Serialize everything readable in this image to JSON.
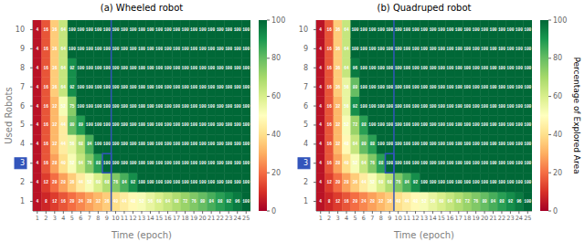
{
  "chart_data": [
    {
      "type": "heatmap",
      "title": "(a) Wheeled robot",
      "x_label": "Time (epoch)",
      "y_label": "Used Robots",
      "x": [
        1,
        2,
        3,
        4,
        5,
        6,
        7,
        8,
        9,
        10,
        11,
        12,
        13,
        14,
        15,
        16,
        17,
        18,
        19,
        20,
        21,
        22,
        23,
        24,
        25
      ],
      "y": [
        1,
        2,
        3,
        4,
        5,
        6,
        7,
        8,
        9,
        10
      ],
      "xlim": [
        0.5,
        25.5
      ],
      "xticks": [
        1,
        2,
        3,
        4,
        5,
        6,
        7,
        8,
        9,
        10,
        11,
        12,
        13,
        14,
        15,
        16,
        17,
        18,
        19,
        20,
        21,
        22,
        23,
        24,
        25
      ],
      "ylim": [
        0.5,
        10.5
      ],
      "yticks": [
        1,
        2,
        3,
        4,
        5,
        6,
        7,
        8,
        9,
        10
      ],
      "values": [
        [
          4,
          8,
          12,
          16,
          20,
          24,
          28,
          32,
          36,
          40,
          44,
          48,
          52,
          56,
          60,
          64,
          68,
          72,
          76,
          80,
          84,
          88,
          92,
          96,
          100
        ],
        [
          4,
          12,
          20,
          28,
          36,
          44,
          52,
          60,
          68,
          76,
          84,
          92,
          100,
          100,
          100,
          100,
          100,
          100,
          100,
          100,
          100,
          100,
          100,
          100,
          100
        ],
        [
          4,
          16,
          28,
          40,
          52,
          64,
          76,
          88,
          100,
          100,
          100,
          100,
          100,
          100,
          100,
          100,
          100,
          100,
          100,
          100,
          100,
          100,
          100,
          100,
          100
        ],
        [
          4,
          16,
          32,
          44,
          56,
          68,
          84,
          100,
          100,
          100,
          100,
          100,
          100,
          100,
          100,
          100,
          100,
          100,
          100,
          100,
          100,
          100,
          100,
          100,
          100
        ],
        [
          4,
          16,
          32,
          44,
          80,
          89,
          100,
          100,
          100,
          100,
          100,
          100,
          100,
          100,
          100,
          100,
          100,
          100,
          100,
          100,
          100,
          100,
          100,
          100,
          100
        ],
        [
          4,
          16,
          32,
          52,
          75,
          100,
          100,
          100,
          100,
          100,
          100,
          100,
          100,
          100,
          100,
          100,
          100,
          100,
          100,
          100,
          100,
          100,
          100,
          100,
          100
        ],
        [
          4,
          16,
          36,
          64,
          92,
          100,
          100,
          100,
          100,
          100,
          100,
          100,
          100,
          100,
          100,
          100,
          100,
          100,
          100,
          100,
          100,
          100,
          100,
          100,
          100
        ],
        [
          4,
          16,
          36,
          64,
          92,
          100,
          100,
          100,
          100,
          100,
          100,
          100,
          100,
          100,
          100,
          100,
          100,
          100,
          100,
          100,
          100,
          100,
          100,
          100,
          100
        ],
        [
          4,
          16,
          36,
          64,
          100,
          100,
          100,
          100,
          100,
          100,
          100,
          100,
          100,
          100,
          100,
          100,
          100,
          100,
          100,
          100,
          100,
          100,
          100,
          100,
          100
        ],
        [
          4,
          16,
          36,
          64,
          100,
          100,
          100,
          100,
          100,
          100,
          100,
          100,
          100,
          100,
          100,
          100,
          100,
          100,
          100,
          100,
          100,
          100,
          100,
          100,
          100
        ]
      ],
      "data_labels": true,
      "colorbar": {
        "range": [
          0,
          100
        ],
        "ticks": [
          0,
          20,
          40,
          60,
          80,
          100
        ]
      },
      "highlight": {
        "color": "#3355bb",
        "line_x": 9.5,
        "box_x": [
          8.5,
          9.5
        ],
        "box_y": [
          2.5,
          3.5
        ],
        "tick": 3
      }
    },
    {
      "type": "heatmap",
      "title": "(b) Quadruped robot",
      "x_label": "Time (epoch)",
      "x": [
        1,
        2,
        3,
        4,
        5,
        6,
        7,
        8,
        9,
        10,
        11,
        12,
        13,
        14,
        15,
        16,
        17,
        18,
        19,
        20,
        21,
        22,
        23,
        24,
        25
      ],
      "y": [
        1,
        2,
        3,
        4,
        5,
        6,
        7,
        8,
        9,
        10
      ],
      "xlim": [
        0.5,
        25.5
      ],
      "xticks": [
        1,
        2,
        3,
        4,
        5,
        6,
        7,
        8,
        9,
        10,
        11,
        12,
        13,
        14,
        15,
        16,
        17,
        18,
        19,
        20,
        21,
        22,
        23,
        24,
        25
      ],
      "ylim": [
        0.5,
        10.5
      ],
      "yticks": [
        1,
        2,
        3,
        4,
        5,
        6,
        7,
        8,
        9,
        10
      ],
      "values": [
        [
          4,
          8,
          12,
          16,
          20,
          24,
          28,
          32,
          36,
          40,
          44,
          48,
          52,
          56,
          60,
          64,
          68,
          72,
          76,
          80,
          84,
          88,
          92,
          96,
          100
        ],
        [
          4,
          12,
          20,
          28,
          36,
          44,
          52,
          60,
          68,
          76,
          84,
          92,
          100,
          100,
          100,
          100,
          100,
          100,
          100,
          100,
          100,
          100,
          100,
          100,
          100
        ],
        [
          4,
          16,
          28,
          40,
          52,
          64,
          76,
          88,
          100,
          100,
          100,
          100,
          100,
          100,
          100,
          100,
          100,
          100,
          100,
          100,
          100,
          100,
          100,
          100,
          100
        ],
        [
          4,
          16,
          32,
          48,
          64,
          80,
          88,
          100,
          100,
          100,
          100,
          100,
          100,
          100,
          100,
          100,
          100,
          100,
          100,
          100,
          100,
          100,
          100,
          100,
          100
        ],
        [
          4,
          16,
          32,
          52,
          72,
          88,
          100,
          100,
          100,
          100,
          100,
          100,
          100,
          100,
          100,
          100,
          100,
          100,
          100,
          100,
          100,
          100,
          100,
          100,
          100
        ],
        [
          4,
          16,
          32,
          56,
          92,
          100,
          100,
          100,
          100,
          100,
          100,
          100,
          100,
          100,
          100,
          100,
          100,
          100,
          100,
          100,
          100,
          100,
          100,
          100,
          100
        ],
        [
          4,
          16,
          36,
          56,
          80,
          100,
          100,
          100,
          100,
          100,
          100,
          100,
          100,
          100,
          100,
          100,
          100,
          100,
          100,
          100,
          100,
          100,
          100,
          100,
          100
        ],
        [
          4,
          16,
          36,
          64,
          96,
          100,
          100,
          100,
          100,
          100,
          100,
          100,
          100,
          100,
          100,
          100,
          100,
          100,
          100,
          100,
          100,
          100,
          100,
          100,
          100
        ],
        [
          4,
          16,
          36,
          64,
          100,
          100,
          100,
          100,
          100,
          100,
          100,
          100,
          100,
          100,
          100,
          100,
          100,
          100,
          100,
          100,
          100,
          100,
          100,
          100,
          100
        ],
        [
          4,
          16,
          36,
          64,
          100,
          100,
          100,
          100,
          100,
          100,
          100,
          100,
          100,
          100,
          100,
          100,
          100,
          100,
          100,
          100,
          100,
          100,
          100,
          100,
          100
        ]
      ],
      "data_labels": true,
      "colorbar": {
        "range": [
          0,
          100
        ],
        "ticks": [
          0,
          20,
          40,
          60,
          80,
          100
        ],
        "label": "Percentage of Explored Area"
      },
      "highlight": {
        "color": "#3355bb",
        "line_x": 9.5,
        "box_x": [
          8.5,
          9.5
        ],
        "box_y": [
          2.5,
          3.5
        ],
        "tick": 3
      }
    }
  ]
}
